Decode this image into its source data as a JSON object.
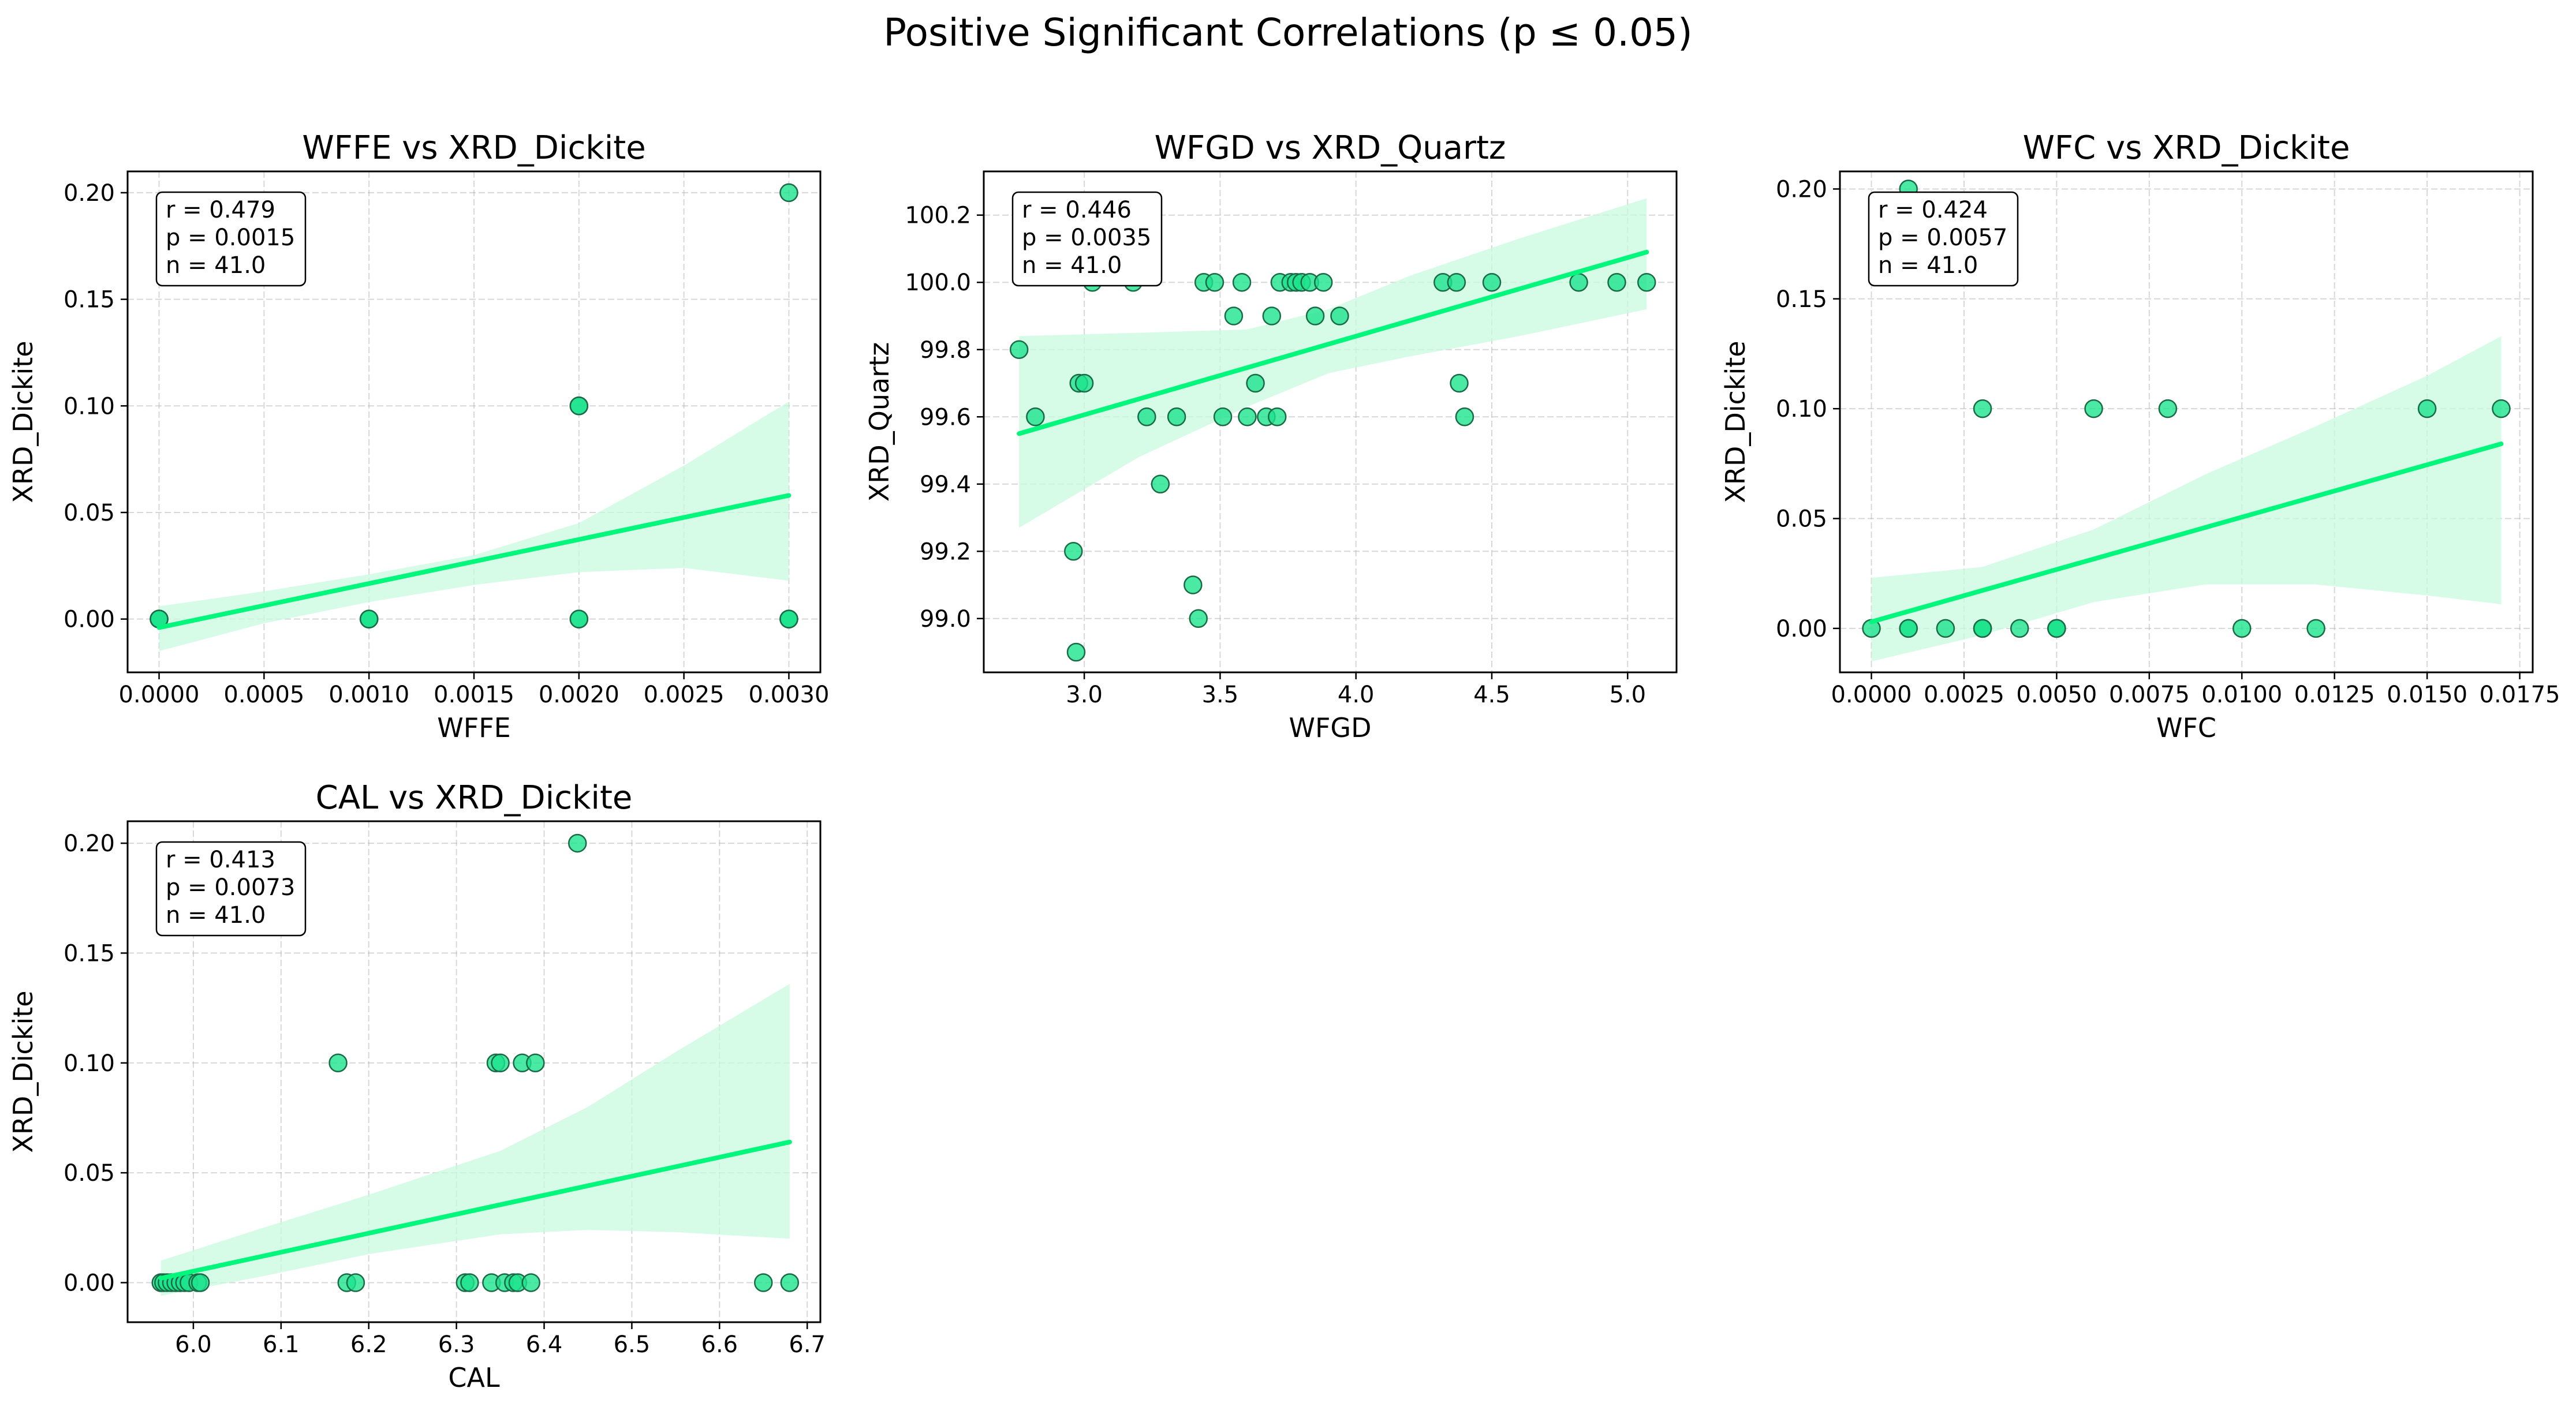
{
  "figure": {
    "title": "Positive Significant Correlations (p ≤ 0.05)",
    "point_color": "#1de38d",
    "line_color": "#00f77b",
    "band_color": "#c8f9df"
  },
  "chart_data": [
    {
      "type": "scatter",
      "title": "WFFE vs XRD_Dickite",
      "xlabel": "WFFE",
      "ylabel": "XRD_Dickite",
      "xlim": [
        -0.00015,
        0.00315
      ],
      "ylim": [
        -0.025,
        0.21
      ],
      "xticks": [
        0.0,
        0.0005,
        0.001,
        0.0015,
        0.002,
        0.0025,
        0.003
      ],
      "xtick_labels": [
        "0.0000",
        "0.0005",
        "0.0010",
        "0.0015",
        "0.0020",
        "0.0025",
        "0.0030"
      ],
      "yticks": [
        0.0,
        0.05,
        0.1,
        0.15,
        0.2
      ],
      "ytick_labels": [
        "0.00",
        "0.05",
        "0.10",
        "0.15",
        "0.20"
      ],
      "stats": [
        "r = 0.479",
        "p = 0.0015",
        "n = 41.0"
      ],
      "grid": true,
      "x": [
        0,
        0,
        0,
        0,
        0.001,
        0.001,
        0.001,
        0.002,
        0.002,
        0.002,
        0.002,
        0.003,
        0.003,
        0.003,
        0.003
      ],
      "y": [
        0,
        0,
        0,
        0,
        0,
        0,
        0,
        0.1,
        0.1,
        0,
        0,
        0.2,
        0,
        0,
        0
      ],
      "fit": {
        "x": [
          0,
          0.003
        ],
        "y": [
          -0.004,
          0.058
        ]
      },
      "band": {
        "x": [
          0,
          0.0005,
          0.001,
          0.0015,
          0.002,
          0.0025,
          0.003
        ],
        "upper": [
          0.006,
          0.013,
          0.021,
          0.03,
          0.045,
          0.072,
          0.102
        ],
        "lower": [
          -0.015,
          -0.002,
          0.008,
          0.016,
          0.022,
          0.024,
          0.018
        ]
      }
    },
    {
      "type": "scatter",
      "title": "WFGD vs XRD_Quartz",
      "xlabel": "WFGD",
      "ylabel": "XRD_Quartz",
      "xlim": [
        2.63,
        5.18
      ],
      "ylim": [
        98.84,
        100.33
      ],
      "xticks": [
        3.0,
        3.5,
        4.0,
        4.5,
        5.0
      ],
      "xtick_labels": [
        "3.0",
        "3.5",
        "4.0",
        "4.5",
        "5.0"
      ],
      "yticks": [
        99.0,
        99.2,
        99.4,
        99.6,
        99.8,
        100.0,
        100.2
      ],
      "ytick_labels": [
        "99.0",
        "99.2",
        "99.4",
        "99.6",
        "99.8",
        "100.0",
        "100.2"
      ],
      "stats": [
        "r = 0.446",
        "p = 0.0035",
        "n = 41.0"
      ],
      "grid": true,
      "x": [
        2.76,
        2.82,
        2.96,
        2.97,
        2.98,
        3.0,
        3.03,
        3.18,
        3.23,
        3.28,
        3.34,
        3.4,
        3.42,
        3.44,
        3.48,
        3.51,
        3.55,
        3.58,
        3.6,
        3.63,
        3.67,
        3.69,
        3.71,
        3.72,
        3.76,
        3.78,
        3.8,
        3.83,
        3.85,
        3.88,
        3.94,
        4.32,
        4.37,
        4.38,
        4.4,
        4.5,
        4.82,
        4.96,
        5.07
      ],
      "y": [
        99.8,
        99.6,
        99.2,
        98.9,
        99.7,
        99.7,
        100.0,
        100.0,
        99.6,
        99.4,
        99.6,
        99.1,
        99.0,
        100.0,
        100.0,
        99.6,
        99.9,
        100.0,
        99.6,
        99.7,
        99.6,
        99.9,
        99.6,
        100.0,
        100.0,
        100.0,
        100.0,
        100.0,
        99.9,
        100.0,
        99.9,
        100.0,
        100.0,
        99.7,
        99.6,
        100.0,
        100.0,
        100.0,
        100.0
      ],
      "fit": {
        "x": [
          2.76,
          5.07
        ],
        "y": [
          99.55,
          100.09
        ]
      },
      "band": {
        "x": [
          2.76,
          3.2,
          3.6,
          3.9,
          4.2,
          4.6,
          5.07
        ],
        "upper": [
          99.84,
          99.85,
          99.86,
          99.92,
          100.02,
          100.13,
          100.25
        ],
        "lower": [
          99.27,
          99.48,
          99.63,
          99.73,
          99.78,
          99.84,
          99.92
        ]
      }
    },
    {
      "type": "scatter",
      "title": "WFC vs XRD_Dickite",
      "xlabel": "WFC",
      "ylabel": "XRD_Dickite",
      "xlim": [
        -0.00085,
        0.01785
      ],
      "ylim": [
        -0.02,
        0.208
      ],
      "xticks": [
        0.0,
        0.0025,
        0.005,
        0.0075,
        0.01,
        0.0125,
        0.015,
        0.0175
      ],
      "xtick_labels": [
        "0.0000",
        "0.0025",
        "0.0050",
        "0.0075",
        "0.0100",
        "0.0125",
        "0.0150",
        "0.0175"
      ],
      "yticks": [
        0.0,
        0.05,
        0.1,
        0.15,
        0.2
      ],
      "ytick_labels": [
        "0.00",
        "0.05",
        "0.10",
        "0.15",
        "0.20"
      ],
      "stats": [
        "r = 0.424",
        "p = 0.0057",
        "n = 41.0"
      ],
      "grid": true,
      "x": [
        0,
        0.001,
        0.001,
        0.001,
        0.002,
        0.003,
        0.003,
        0.003,
        0.003,
        0.004,
        0.005,
        0.005,
        0.005,
        0.006,
        0.008,
        0.01,
        0.012,
        0.015,
        0.017
      ],
      "y": [
        0,
        0.2,
        0,
        0,
        0,
        0.1,
        0,
        0,
        0,
        0,
        0,
        0,
        0,
        0.1,
        0.1,
        0,
        0,
        0.1,
        0.1
      ],
      "fit": {
        "x": [
          0,
          0.017
        ],
        "y": [
          0.003,
          0.084
        ]
      },
      "band": {
        "x": [
          0,
          0.003,
          0.006,
          0.009,
          0.012,
          0.015,
          0.017
        ],
        "upper": [
          0.023,
          0.028,
          0.045,
          0.07,
          0.092,
          0.115,
          0.133
        ],
        "lower": [
          -0.015,
          -0.003,
          0.012,
          0.02,
          0.02,
          0.015,
          0.011
        ]
      }
    },
    {
      "type": "scatter",
      "title": "CAL vs XRD_Dickite",
      "xlabel": "CAL",
      "ylabel": "XRD_Dickite",
      "xlim": [
        5.925,
        6.715
      ],
      "ylim": [
        -0.018,
        0.21
      ],
      "xticks": [
        6.0,
        6.1,
        6.2,
        6.3,
        6.4,
        6.5,
        6.6,
        6.7
      ],
      "xtick_labels": [
        "6.0",
        "6.1",
        "6.2",
        "6.3",
        "6.4",
        "6.5",
        "6.6",
        "6.7"
      ],
      "yticks": [
        0.0,
        0.05,
        0.1,
        0.15,
        0.2
      ],
      "ytick_labels": [
        "0.00",
        "0.05",
        "0.10",
        "0.15",
        "0.20"
      ],
      "stats": [
        "r = 0.413",
        "p = 0.0073",
        "n = 41.0"
      ],
      "grid": true,
      "x": [
        5.963,
        5.966,
        5.97,
        5.975,
        5.98,
        5.985,
        5.99,
        5.995,
        6.005,
        6.008,
        6.165,
        6.175,
        6.185,
        6.31,
        6.315,
        6.34,
        6.345,
        6.35,
        6.355,
        6.365,
        6.37,
        6.375,
        6.385,
        6.39,
        6.438,
        6.65,
        6.68
      ],
      "y": [
        0,
        0,
        0,
        0,
        0,
        0,
        0,
        0,
        0,
        0,
        0.1,
        0,
        0,
        0,
        0,
        0,
        0.1,
        0.1,
        0,
        0,
        0,
        0.1,
        0,
        0.1,
        0.2,
        0,
        0
      ],
      "fit": {
        "x": [
          5.963,
          6.68
        ],
        "y": [
          0.002,
          0.064
        ]
      },
      "band": {
        "x": [
          5.963,
          6.08,
          6.2,
          6.35,
          6.45,
          6.55,
          6.68
        ],
        "upper": [
          0.01,
          0.025,
          0.04,
          0.06,
          0.08,
          0.105,
          0.136
        ],
        "lower": [
          -0.006,
          0.003,
          0.013,
          0.022,
          0.024,
          0.023,
          0.02
        ]
      }
    }
  ]
}
